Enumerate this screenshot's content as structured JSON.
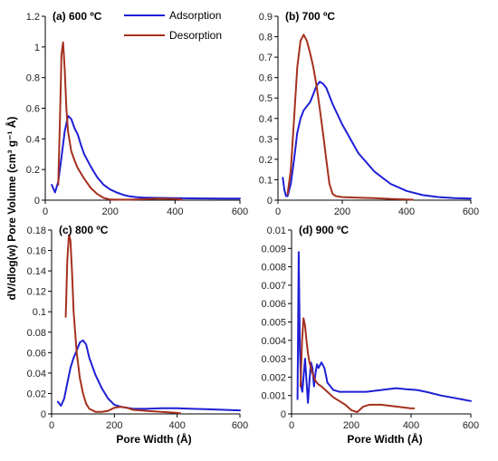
{
  "figure": {
    "ylabel": "dV/dlog(w) Pore Volume (cm³ g⁻¹ Å)",
    "xlabel": "Pore Width (Å)"
  },
  "legend": [
    {
      "name": "Adsorption",
      "color": "#1f1fd6"
    },
    {
      "name": "Desorption",
      "color": "#a5301e"
    }
  ],
  "chart_data": [
    {
      "type": "line",
      "title": "(a) 600 ºC",
      "xlim": [
        0,
        600
      ],
      "ylim": [
        0,
        1.2
      ],
      "xticks": [
        0,
        200,
        400,
        600
      ],
      "yticks": [
        0,
        0.2,
        0.4,
        0.6,
        0.8,
        1,
        1.2
      ],
      "ytick_labels": [
        "0",
        "0.2",
        "0.4",
        "0.6",
        "0.8",
        "1",
        "1.2"
      ],
      "xtick_labels": [
        "0",
        "200",
        "400",
        "600"
      ],
      "series": [
        {
          "name": "Adsorption",
          "x": [
            20,
            30,
            40,
            50,
            60,
            70,
            80,
            90,
            100,
            110,
            120,
            140,
            160,
            180,
            200,
            220,
            240,
            260,
            280,
            300,
            350,
            400,
            450,
            500,
            550,
            600
          ],
          "y": [
            0.1,
            0.05,
            0.12,
            0.28,
            0.45,
            0.55,
            0.53,
            0.47,
            0.43,
            0.36,
            0.3,
            0.22,
            0.15,
            0.1,
            0.07,
            0.05,
            0.035,
            0.025,
            0.02,
            0.017,
            0.015,
            0.013,
            0.012,
            0.011,
            0.01,
            0.01
          ]
        },
        {
          "name": "Desorption",
          "x": [
            40,
            45,
            50,
            55,
            60,
            65,
            70,
            80,
            90,
            100,
            120,
            140,
            160,
            180,
            200,
            250,
            300,
            350,
            400,
            420
          ],
          "y": [
            0.1,
            0.5,
            0.95,
            1.03,
            0.85,
            0.6,
            0.45,
            0.32,
            0.26,
            0.21,
            0.14,
            0.08,
            0.04,
            0.015,
            0.004,
            0.003,
            0.006,
            0.01,
            0.008,
            0.004
          ]
        }
      ]
    },
    {
      "type": "line",
      "title": "(b) 700 ºC",
      "xlim": [
        0,
        600
      ],
      "ylim": [
        0,
        0.9
      ],
      "xticks": [
        0,
        200,
        400,
        600
      ],
      "yticks": [
        0,
        0.1,
        0.2,
        0.3,
        0.4,
        0.5,
        0.6,
        0.7,
        0.8,
        0.9
      ],
      "ytick_labels": [
        "0",
        "0.1",
        "0.2",
        "0.3",
        "0.4",
        "0.5",
        "0.6",
        "0.7",
        "0.8",
        "0.9"
      ],
      "xtick_labels": [
        "0",
        "200",
        "400",
        "600"
      ],
      "series": [
        {
          "name": "Adsorption",
          "x": [
            15,
            20,
            25,
            30,
            40,
            50,
            60,
            70,
            80,
            90,
            100,
            110,
            120,
            130,
            140,
            150,
            170,
            200,
            250,
            300,
            350,
            400,
            450,
            500,
            550,
            600
          ],
          "y": [
            0.11,
            0.05,
            0.02,
            0.02,
            0.08,
            0.2,
            0.33,
            0.4,
            0.44,
            0.46,
            0.48,
            0.52,
            0.56,
            0.58,
            0.57,
            0.55,
            0.47,
            0.37,
            0.23,
            0.14,
            0.08,
            0.045,
            0.025,
            0.015,
            0.01,
            0.008
          ]
        },
        {
          "name": "Desorption",
          "x": [
            30,
            40,
            50,
            60,
            70,
            80,
            90,
            100,
            110,
            120,
            130,
            140,
            150,
            160,
            170,
            180,
            200,
            250,
            300,
            350,
            400,
            420
          ],
          "y": [
            0.03,
            0.15,
            0.4,
            0.65,
            0.78,
            0.81,
            0.78,
            0.72,
            0.65,
            0.56,
            0.45,
            0.33,
            0.2,
            0.08,
            0.03,
            0.02,
            0.015,
            0.012,
            0.01,
            0.006,
            0.003,
            0.002
          ]
        }
      ]
    },
    {
      "type": "line",
      "title": "(c) 800 ºC",
      "xlim": [
        0,
        600
      ],
      "ylim": [
        0,
        0.18
      ],
      "xticks": [
        0,
        200,
        400,
        600
      ],
      "yticks": [
        0,
        0.02,
        0.04,
        0.06,
        0.08,
        0.1,
        0.12,
        0.14,
        0.16,
        0.18
      ],
      "ytick_labels": [
        "0",
        "0.02",
        "0.04",
        "0.06",
        "0.08",
        "0.1",
        "0.12",
        "0.14",
        "0.16",
        "0.18"
      ],
      "xtick_labels": [
        "0",
        "200",
        "400",
        "600"
      ],
      "series": [
        {
          "name": "Adsorption",
          "x": [
            20,
            30,
            40,
            50,
            60,
            70,
            80,
            90,
            100,
            110,
            120,
            140,
            160,
            180,
            200,
            220,
            240,
            260,
            300,
            350,
            400,
            450,
            500,
            550,
            600
          ],
          "y": [
            0.012,
            0.008,
            0.015,
            0.03,
            0.045,
            0.055,
            0.062,
            0.07,
            0.072,
            0.068,
            0.055,
            0.038,
            0.025,
            0.015,
            0.009,
            0.007,
            0.006,
            0.005,
            0.005,
            0.0055,
            0.0055,
            0.005,
            0.0045,
            0.004,
            0.0035
          ]
        },
        {
          "name": "Desorption",
          "x": [
            45,
            50,
            55,
            60,
            65,
            70,
            80,
            90,
            100,
            110,
            120,
            140,
            160,
            180,
            200,
            220,
            240,
            260,
            300,
            350,
            400,
            410
          ],
          "y": [
            0.095,
            0.15,
            0.175,
            0.17,
            0.14,
            0.1,
            0.06,
            0.035,
            0.02,
            0.01,
            0.005,
            0.002,
            0.002,
            0.003,
            0.006,
            0.007,
            0.006,
            0.004,
            0.003,
            0.002,
            0.001,
            0.0005
          ]
        }
      ]
    },
    {
      "type": "line",
      "title": "(d) 900 ºC",
      "xlim": [
        0,
        600
      ],
      "ylim": [
        0,
        0.01
      ],
      "xticks": [
        0,
        200,
        400,
        600
      ],
      "yticks": [
        0,
        0.001,
        0.002,
        0.003,
        0.004,
        0.005,
        0.006,
        0.007,
        0.008,
        0.009,
        0.01
      ],
      "ytick_labels": [
        "0",
        "0.001",
        "0.002",
        "0.003",
        "0.004",
        "0.005",
        "0.006",
        "0.007",
        "0.008",
        "0.009",
        "0.01"
      ],
      "xtick_labels": [
        "0",
        "200",
        "400",
        "600"
      ],
      "series": [
        {
          "name": "Adsorption",
          "x": [
            20,
            24,
            28,
            32,
            36,
            40,
            45,
            50,
            55,
            60,
            65,
            70,
            75,
            80,
            85,
            90,
            100,
            110,
            120,
            140,
            160,
            180,
            200,
            250,
            300,
            350,
            380,
            420,
            450,
            500,
            550,
            600
          ],
          "y": [
            0.0008,
            0.0088,
            0.0035,
            0.0015,
            0.0012,
            0.002,
            0.003,
            0.0018,
            0.0006,
            0.0018,
            0.0028,
            0.0025,
            0.0015,
            0.0022,
            0.0027,
            0.0025,
            0.0028,
            0.0025,
            0.0017,
            0.0013,
            0.0012,
            0.0012,
            0.0012,
            0.0012,
            0.0013,
            0.0014,
            0.00135,
            0.0013,
            0.0012,
            0.001,
            0.00085,
            0.0007
          ]
        },
        {
          "name": "Desorption",
          "x": [
            30,
            35,
            40,
            45,
            50,
            55,
            60,
            70,
            80,
            90,
            100,
            120,
            140,
            160,
            180,
            200,
            220,
            240,
            260,
            300,
            350,
            400,
            410
          ],
          "y": [
            0.0015,
            0.004,
            0.0052,
            0.0048,
            0.004,
            0.0033,
            0.0028,
            0.0022,
            0.0018,
            0.0016,
            0.0015,
            0.0012,
            0.0009,
            0.0007,
            0.0005,
            0.0002,
            0.0001,
            0.0004,
            0.0005,
            0.0005,
            0.0004,
            0.0003,
            0.0003
          ]
        }
      ]
    }
  ]
}
